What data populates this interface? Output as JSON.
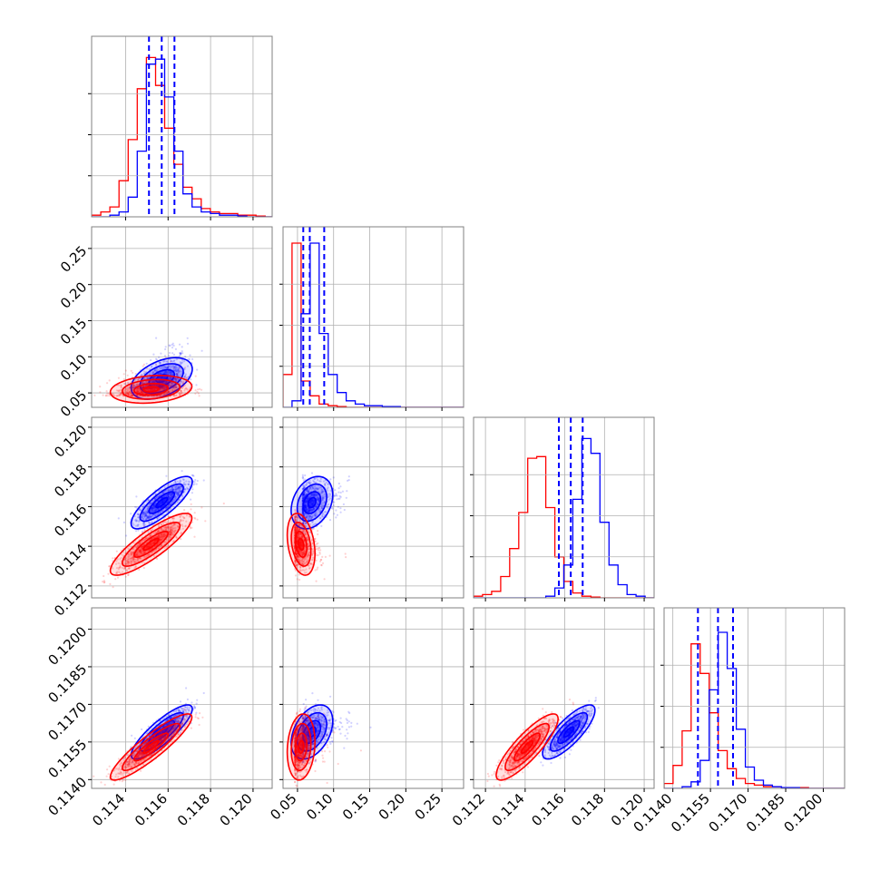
{
  "chart_data": {
    "type": "corner",
    "description": "Corner plot of 4 parameters comparing two posterior sample sets (blue and red). Diagonal: 1D histograms (step) with dashed blue quantile lines for the blue set. Off-diagonal: 2D scatter + density contours.",
    "colors": {
      "series_a": "#0000ff",
      "series_b": "#ff0000",
      "grid": "#b0b0b0",
      "frame": "#808080"
    },
    "grid": true,
    "params": [
      {
        "range": [
          0.1124,
          0.1209
        ],
        "ticks": [
          0.114,
          0.116,
          0.118,
          0.12
        ],
        "tick_labels": [
          "0.114",
          "0.116",
          "0.118",
          "0.120"
        ]
      },
      {
        "range": [
          0.03,
          0.28
        ],
        "ticks": [
          0.05,
          0.1,
          0.15,
          0.2,
          0.25
        ],
        "tick_labels": [
          "0.05",
          "0.10",
          "0.15",
          "0.20",
          "0.25"
        ]
      },
      {
        "range": [
          0.1114,
          0.1205
        ],
        "ticks": [
          0.112,
          0.114,
          0.116,
          0.118,
          0.12
        ],
        "tick_labels": [
          "0.112",
          "0.114",
          "0.116",
          "0.118",
          "0.120"
        ]
      },
      {
        "range": [
          0.11365,
          0.12085
        ],
        "ticks": [
          0.114,
          0.1155,
          0.117,
          0.1185,
          0.12
        ],
        "tick_labels": [
          "0.1140",
          "0.1155",
          "0.1170",
          "0.1185",
          "0.1200"
        ]
      }
    ],
    "series": [
      {
        "name": "",
        "color": "#0000ff",
        "means": [
          0.1157,
          0.07,
          0.1162,
          0.1159
        ],
        "sds": [
          0.0006,
          0.012,
          0.00055,
          0.00045
        ],
        "corr": [
          [
            1,
            0.45,
            0.8,
            0.85
          ],
          [
            0.45,
            1,
            0.3,
            0.4
          ],
          [
            0.8,
            0.3,
            1,
            0.8
          ],
          [
            0.85,
            0.4,
            0.8,
            1
          ]
        ],
        "quantiles": [
          [
            0.1151,
            0.1157,
            0.1163
          ],
          [
            0.058,
            0.067,
            0.087
          ],
          [
            0.1157,
            0.1163,
            0.1169
          ],
          [
            0.115,
            0.1158,
            0.1164
          ]
        ]
      },
      {
        "name": "",
        "color": "#ff0000",
        "means": [
          0.1152,
          0.055,
          0.1141,
          0.1153
        ],
        "sds": [
          0.0008,
          0.008,
          0.00065,
          0.00055
        ],
        "corr": [
          [
            1,
            0.2,
            0.85,
            0.9
          ],
          [
            0.2,
            1,
            -0.3,
            0.15
          ],
          [
            0.85,
            -0.3,
            1,
            0.85
          ],
          [
            0.9,
            0.15,
            0.85,
            1
          ]
        ]
      }
    ],
    "histograms": {
      "d0": {
        "edges_from": 0.1124,
        "bin_width": 0.00043,
        "a": [
          0,
          0,
          1,
          3,
          12,
          40,
          93,
          96,
          73,
          40,
          14,
          6,
          3,
          2,
          1,
          1,
          0.5,
          0,
          0,
          0
        ],
        "b": [
          1,
          3,
          6,
          22,
          47,
          78,
          97,
          80,
          54,
          32,
          18,
          11,
          5,
          3,
          2,
          2,
          1,
          1,
          0.5,
          0
        ]
      },
      "d1": {
        "edges_from": 0.03,
        "bin_width": 0.0125,
        "a": [
          0,
          4,
          57,
          100,
          45,
          20,
          9,
          4,
          2,
          1,
          1,
          0.5,
          0.5,
          0,
          0,
          0,
          0,
          0,
          0,
          0
        ],
        "b": [
          20,
          100,
          16,
          7,
          2,
          1,
          0.5,
          0,
          0,
          0,
          0,
          0,
          0,
          0,
          0,
          0,
          0,
          0,
          0,
          0
        ]
      },
      "d2": {
        "edges_from": 0.1114,
        "bin_width": 0.000455,
        "a": [
          0,
          0,
          0,
          0,
          0,
          0,
          0,
          0,
          1,
          6,
          20,
          60,
          97,
          88,
          46,
          20,
          8,
          2,
          1,
          0
        ],
        "b": [
          1,
          2,
          4,
          13,
          30,
          52,
          85,
          86,
          55,
          25,
          10,
          3,
          1,
          0.5,
          0,
          0,
          0,
          0,
          0,
          0
        ]
      },
      "d3": {
        "edges_from": 0.11365,
        "bin_width": 0.00036,
        "a": [
          0,
          0,
          1,
          4,
          17,
          60,
          95,
          73,
          36,
          13,
          5,
          2,
          1,
          0.5,
          0.5,
          0,
          0,
          0,
          0,
          0
        ],
        "b": [
          3,
          14,
          35,
          88,
          70,
          46,
          23,
          12,
          6,
          3,
          2,
          1,
          1,
          0.5,
          0.5,
          0.5,
          0,
          0,
          0,
          0
        ]
      }
    }
  }
}
